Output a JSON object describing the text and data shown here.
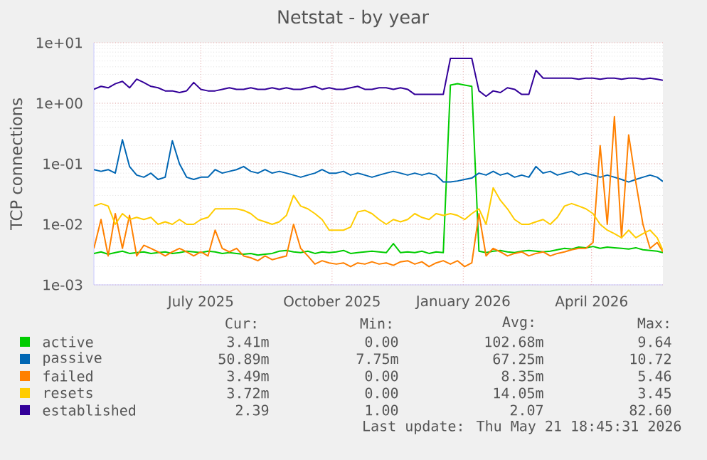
{
  "chart_data": {
    "type": "line",
    "title": "Netstat - by year",
    "ylabel": "TCP connections",
    "log": "y",
    "grid": true,
    "legend": "bottom",
    "line_style": "solid",
    "xlim": [
      "2025-04-17",
      "2026-05-21"
    ],
    "xticks": [
      {
        "value": "2025-07-01",
        "label": "July 2025"
      },
      {
        "value": "2025-10-01",
        "label": "October 2025"
      },
      {
        "value": "2026-01-01",
        "label": "January 2026"
      },
      {
        "value": "2026-04-01",
        "label": "April 2026"
      }
    ],
    "ylim": [
      0.001,
      10
    ],
    "yticks": [
      {
        "value": 0.001,
        "label": "1e-03"
      },
      {
        "value": 0.01,
        "label": "1e-02"
      },
      {
        "value": 0.1,
        "label": "1e-01"
      },
      {
        "value": 1,
        "label": "1e+00"
      },
      {
        "value": 10,
        "label": "1e+01"
      }
    ],
    "x": [
      "2025-04-17",
      "2025-04-22",
      "2025-04-27",
      "2025-05-02",
      "2025-05-07",
      "2025-05-12",
      "2025-05-17",
      "2025-05-22",
      "2025-05-27",
      "2025-06-01",
      "2025-06-06",
      "2025-06-11",
      "2025-06-16",
      "2025-06-21",
      "2025-06-26",
      "2025-07-01",
      "2025-07-06",
      "2025-07-11",
      "2025-07-16",
      "2025-07-21",
      "2025-07-26",
      "2025-07-31",
      "2025-08-05",
      "2025-08-10",
      "2025-08-15",
      "2025-08-20",
      "2025-08-25",
      "2025-08-30",
      "2025-09-04",
      "2025-09-09",
      "2025-09-14",
      "2025-09-19",
      "2025-09-24",
      "2025-09-29",
      "2025-10-04",
      "2025-10-09",
      "2025-10-14",
      "2025-10-19",
      "2025-10-24",
      "2025-10-29",
      "2025-11-03",
      "2025-11-08",
      "2025-11-13",
      "2025-11-18",
      "2025-11-23",
      "2025-11-28",
      "2025-12-03",
      "2025-12-08",
      "2025-12-13",
      "2025-12-18",
      "2025-12-23",
      "2025-12-28",
      "2026-01-02",
      "2026-01-07",
      "2026-01-12",
      "2026-01-17",
      "2026-01-22",
      "2026-01-27",
      "2026-02-01",
      "2026-02-06",
      "2026-02-11",
      "2026-02-16",
      "2026-02-21",
      "2026-02-26",
      "2026-03-03",
      "2026-03-08",
      "2026-03-13",
      "2026-03-18",
      "2026-03-23",
      "2026-03-28",
      "2026-04-02",
      "2026-04-07",
      "2026-04-12",
      "2026-04-17",
      "2026-04-22",
      "2026-04-27",
      "2026-05-02",
      "2026-05-07",
      "2026-05-12",
      "2026-05-17",
      "2026-05-21"
    ],
    "series": [
      {
        "name": "active",
        "color": "#00cc00",
        "values": [
          0.0033,
          0.0035,
          0.0032,
          0.0034,
          0.0036,
          0.0033,
          0.0034,
          0.0035,
          0.0033,
          0.0034,
          0.0035,
          0.0033,
          0.0034,
          0.0036,
          0.0035,
          0.0034,
          0.0036,
          0.0035,
          0.0033,
          0.0034,
          0.0033,
          0.0032,
          0.0033,
          0.0031,
          0.0032,
          0.0033,
          0.0036,
          0.0037,
          0.0035,
          0.0034,
          0.0036,
          0.0033,
          0.0035,
          0.0034,
          0.0035,
          0.0037,
          0.0033,
          0.0034,
          0.0035,
          0.0036,
          0.0035,
          0.0034,
          0.0048,
          0.0034,
          0.0035,
          0.0034,
          0.0036,
          0.0033,
          0.0035,
          0.0034,
          2.0,
          2.1,
          2.0,
          1.9,
          0.0036,
          0.0034,
          0.0036,
          0.0037,
          0.0035,
          0.0034,
          0.0036,
          0.0037,
          0.0036,
          0.0035,
          0.0036,
          0.0038,
          0.004,
          0.0039,
          0.0042,
          0.0041,
          0.0043,
          0.004,
          0.0042,
          0.0041,
          0.004,
          0.0039,
          0.0041,
          0.0038,
          0.0037,
          0.0036,
          0.0034
        ]
      },
      {
        "name": "passive",
        "color": "#0066b3",
        "values": [
          0.08,
          0.075,
          0.08,
          0.07,
          0.25,
          0.09,
          0.065,
          0.06,
          0.07,
          0.055,
          0.06,
          0.24,
          0.1,
          0.06,
          0.055,
          0.06,
          0.06,
          0.08,
          0.07,
          0.075,
          0.08,
          0.09,
          0.075,
          0.07,
          0.08,
          0.07,
          0.075,
          0.07,
          0.065,
          0.06,
          0.065,
          0.07,
          0.08,
          0.07,
          0.07,
          0.075,
          0.065,
          0.07,
          0.065,
          0.06,
          0.065,
          0.07,
          0.075,
          0.07,
          0.065,
          0.07,
          0.065,
          0.07,
          0.065,
          0.05,
          0.05,
          0.052,
          0.055,
          0.058,
          0.07,
          0.065,
          0.075,
          0.065,
          0.07,
          0.06,
          0.065,
          0.06,
          0.09,
          0.07,
          0.075,
          0.065,
          0.07,
          0.075,
          0.065,
          0.07,
          0.065,
          0.06,
          0.065,
          0.06,
          0.055,
          0.05,
          0.055,
          0.06,
          0.065,
          0.06,
          0.051
        ]
      },
      {
        "name": "failed",
        "color": "#ff8000",
        "values": [
          0.004,
          0.012,
          0.003,
          0.015,
          0.004,
          0.014,
          0.003,
          0.0045,
          0.004,
          0.0035,
          0.003,
          0.0035,
          0.004,
          0.0035,
          0.003,
          0.0035,
          0.003,
          0.008,
          0.004,
          0.0035,
          0.004,
          0.003,
          0.0028,
          0.0025,
          0.003,
          0.0026,
          0.0028,
          0.003,
          0.01,
          0.004,
          0.003,
          0.0022,
          0.0025,
          0.0023,
          0.0022,
          0.0023,
          0.002,
          0.0023,
          0.0022,
          0.0024,
          0.0022,
          0.0023,
          0.0021,
          0.0024,
          0.0025,
          0.0022,
          0.0024,
          0.002,
          0.0023,
          0.0025,
          0.0022,
          0.0025,
          0.002,
          0.0023,
          0.015,
          0.003,
          0.004,
          0.0035,
          0.003,
          0.0033,
          0.0035,
          0.003,
          0.0033,
          0.0035,
          0.003,
          0.0033,
          0.0035,
          0.0038,
          0.004,
          0.004,
          0.005,
          0.2,
          0.01,
          0.6,
          0.006,
          0.3,
          0.05,
          0.01,
          0.004,
          0.005,
          0.0035
        ]
      },
      {
        "name": "resets",
        "color": "#ffcc00",
        "values": [
          0.02,
          0.022,
          0.02,
          0.01,
          0.015,
          0.012,
          0.013,
          0.012,
          0.013,
          0.01,
          0.011,
          0.01,
          0.012,
          0.01,
          0.01,
          0.012,
          0.013,
          0.018,
          0.018,
          0.018,
          0.018,
          0.017,
          0.015,
          0.012,
          0.011,
          0.01,
          0.011,
          0.014,
          0.03,
          0.02,
          0.018,
          0.015,
          0.012,
          0.008,
          0.008,
          0.008,
          0.009,
          0.016,
          0.017,
          0.015,
          0.012,
          0.01,
          0.012,
          0.011,
          0.012,
          0.015,
          0.013,
          0.012,
          0.015,
          0.014,
          0.015,
          0.014,
          0.012,
          0.015,
          0.018,
          0.01,
          0.04,
          0.025,
          0.018,
          0.012,
          0.01,
          0.01,
          0.011,
          0.012,
          0.01,
          0.013,
          0.02,
          0.022,
          0.02,
          0.018,
          0.015,
          0.01,
          0.008,
          0.007,
          0.006,
          0.008,
          0.006,
          0.007,
          0.008,
          0.006,
          0.0037
        ]
      },
      {
        "name": "established",
        "color": "#330099",
        "values": [
          1.7,
          1.9,
          1.8,
          2.1,
          2.3,
          1.8,
          2.5,
          2.2,
          1.9,
          1.8,
          1.6,
          1.6,
          1.5,
          1.6,
          2.2,
          1.7,
          1.6,
          1.6,
          1.7,
          1.8,
          1.7,
          1.7,
          1.8,
          1.7,
          1.7,
          1.8,
          1.7,
          1.8,
          1.7,
          1.7,
          1.8,
          1.9,
          1.7,
          1.8,
          1.7,
          1.7,
          1.8,
          1.9,
          1.7,
          1.7,
          1.8,
          1.8,
          1.7,
          1.8,
          1.7,
          1.4,
          1.4,
          1.4,
          1.4,
          1.4,
          5.5,
          5.5,
          5.5,
          5.5,
          1.6,
          1.3,
          1.6,
          1.5,
          1.8,
          1.7,
          1.4,
          1.4,
          3.5,
          2.6,
          2.6,
          2.6,
          2.6,
          2.6,
          2.5,
          2.6,
          2.6,
          2.5,
          2.6,
          2.6,
          2.5,
          2.6,
          2.6,
          2.5,
          2.6,
          2.5,
          2.39
        ]
      }
    ],
    "annotations": [
      "Cur:",
      "Min:",
      "Avg:",
      "Max:",
      "3.41m",
      "0.00",
      "102.68m",
      "9.64",
      "50.89m",
      "7.75m",
      "67.25m",
      "10.72",
      "3.49m",
      "0.00",
      "8.35m",
      "5.46",
      "3.72m",
      "0.00",
      "14.05m",
      "3.45",
      "2.39",
      "1.00",
      "2.07",
      "82.60",
      "Last update: Thu May 21 18:45:31 2026"
    ]
  }
}
